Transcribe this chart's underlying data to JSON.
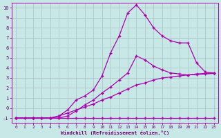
{
  "bg_color": "#c8e8e8",
  "grid_color": "#b0c8c8",
  "line_color": "#aa00aa",
  "marker": "+",
  "xlabel": "Windchill (Refroidissement éolien,°C)",
  "xlabel_color": "#660066",
  "tick_color": "#660066",
  "xlim": [
    -0.5,
    23.5
  ],
  "ylim": [
    -1.5,
    10.5
  ],
  "xticks": [
    0,
    1,
    2,
    3,
    4,
    5,
    6,
    7,
    8,
    9,
    10,
    11,
    12,
    13,
    14,
    15,
    16,
    17,
    18,
    19,
    20,
    21,
    22,
    23
  ],
  "yticks": [
    -1,
    0,
    1,
    2,
    3,
    4,
    5,
    6,
    7,
    8,
    9,
    10
  ],
  "lines": [
    {
      "x": [
        0,
        1,
        2,
        3,
        4,
        5,
        6,
        7,
        8,
        9,
        10,
        11,
        12,
        13,
        14,
        15,
        16,
        17,
        18,
        19,
        20,
        21,
        22,
        23
      ],
      "y": [
        -1,
        -1,
        -1,
        -1,
        -1,
        -1,
        -1,
        -1,
        -1,
        -1,
        -1,
        -1,
        -1,
        -1,
        -1,
        -1,
        -1,
        -1,
        -1,
        -1,
        -1,
        -1,
        -1,
        -1
      ]
    },
    {
      "x": [
        0,
        1,
        2,
        3,
        4,
        5,
        6,
        7,
        8,
        9,
        10,
        11,
        12,
        13,
        14,
        15,
        16,
        17,
        18,
        19,
        20,
        21,
        22,
        23
      ],
      "y": [
        -1,
        -1,
        -1,
        -1,
        -1,
        -0.8,
        -0.5,
        -0.2,
        0.1,
        0.4,
        0.8,
        1.1,
        1.5,
        1.9,
        2.3,
        2.5,
        2.8,
        3.0,
        3.1,
        3.2,
        3.3,
        3.35,
        3.4,
        3.45
      ]
    },
    {
      "x": [
        0,
        2,
        4,
        5,
        6,
        7,
        8,
        9,
        10,
        11,
        12,
        13,
        14,
        15,
        16,
        17,
        18,
        19,
        20,
        21,
        22,
        23
      ],
      "y": [
        -1,
        -1,
        -1,
        -1,
        -0.8,
        -0.3,
        0.3,
        0.8,
        1.5,
        2.1,
        2.8,
        3.5,
        5.2,
        4.8,
        4.2,
        3.8,
        3.5,
        3.4,
        3.3,
        3.4,
        3.45,
        3.5
      ]
    },
    {
      "x": [
        0,
        2,
        3,
        4,
        5,
        6,
        7,
        8,
        9,
        10,
        11,
        12,
        13,
        14,
        15,
        16,
        17,
        18,
        19,
        20,
        21,
        22,
        23
      ],
      "y": [
        -1,
        -1,
        -1,
        -1,
        -0.8,
        -0.2,
        0.8,
        1.2,
        1.8,
        3.2,
        5.5,
        7.2,
        9.5,
        10.3,
        9.3,
        8.0,
        7.2,
        6.7,
        6.5,
        6.5,
        4.5,
        3.6,
        3.5
      ]
    }
  ]
}
